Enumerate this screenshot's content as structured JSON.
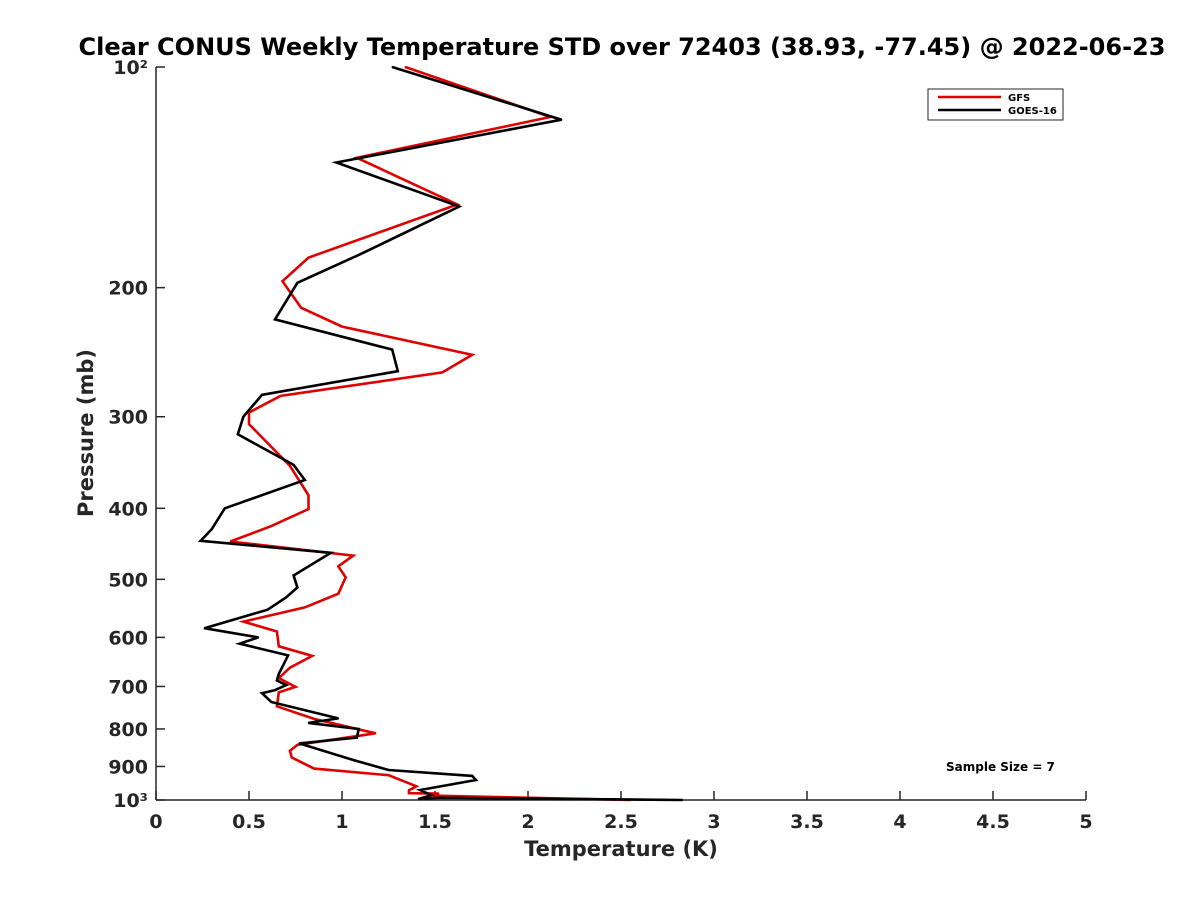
{
  "chart_data": {
    "type": "line",
    "title": "Clear CONUS Weekly Temperature STD over 72403 (38.93, -77.45) @ 2022-06-23",
    "xlabel": "Temperature (K)",
    "ylabel": "Pressure (mb)",
    "xlim": [
      0,
      5
    ],
    "ylim": [
      100,
      1000
    ],
    "y_scale": "log",
    "y_reversed": true,
    "x_ticks": [
      0,
      0.5,
      1,
      1.5,
      2,
      2.5,
      3,
      3.5,
      4,
      4.5,
      5
    ],
    "x_tick_labels": [
      "0",
      "0.5",
      "1",
      "1.5",
      "2",
      "2.5",
      "3",
      "3.5",
      "4",
      "4.5",
      "5"
    ],
    "y_ticks": [
      100,
      200,
      300,
      400,
      500,
      600,
      700,
      800,
      900,
      1000
    ],
    "y_tick_labels": [
      "10²",
      "200",
      "300",
      "400",
      "500",
      "600",
      "700",
      "800",
      "900",
      "10³"
    ],
    "grid": false,
    "legend": {
      "placement": "top-right",
      "entries": [
        "GFS",
        "GOES-16"
      ]
    },
    "annotation": "Sample Size = 7",
    "series": [
      {
        "name": "GFS",
        "color": "#e00000",
        "points": [
          [
            1.34,
            100
          ],
          [
            2.12,
            117
          ],
          [
            1.08,
            133
          ],
          [
            1.62,
            154
          ],
          [
            0.82,
            182
          ],
          [
            0.68,
            196
          ],
          [
            0.78,
            213
          ],
          [
            1.0,
            226
          ],
          [
            1.7,
            247
          ],
          [
            1.54,
            261
          ],
          [
            0.67,
            281
          ],
          [
            0.5,
            296
          ],
          [
            0.5,
            307
          ],
          [
            0.72,
            350
          ],
          [
            0.82,
            384
          ],
          [
            0.82,
            401
          ],
          [
            0.62,
            423
          ],
          [
            0.4,
            444
          ],
          [
            1.06,
            464
          ],
          [
            0.98,
            480
          ],
          [
            1.02,
            497
          ],
          [
            0.98,
            523
          ],
          [
            0.8,
            546
          ],
          [
            0.47,
            571
          ],
          [
            0.65,
            589
          ],
          [
            0.66,
            617
          ],
          [
            0.84,
            636
          ],
          [
            0.72,
            660
          ],
          [
            0.66,
            682
          ],
          [
            0.75,
            701
          ],
          [
            0.66,
            713
          ],
          [
            0.65,
            745
          ],
          [
            0.85,
            775
          ],
          [
            1.18,
            811
          ],
          [
            0.76,
            841
          ],
          [
            0.72,
            857
          ],
          [
            0.73,
            875
          ],
          [
            0.85,
            906
          ],
          [
            1.25,
            925
          ],
          [
            1.4,
            958
          ],
          [
            1.36,
            970
          ],
          [
            1.36,
            979
          ],
          [
            1.52,
            980
          ],
          [
            1.47,
            986
          ],
          [
            2.55,
            1000
          ]
        ]
      },
      {
        "name": "GOES-16",
        "color": "#000000",
        "points": [
          [
            1.27,
            100
          ],
          [
            2.18,
            118
          ],
          [
            0.97,
            135
          ],
          [
            1.63,
            155
          ],
          [
            1.1,
            180
          ],
          [
            0.76,
            197
          ],
          [
            0.64,
            221
          ],
          [
            1.27,
            243
          ],
          [
            1.3,
            260
          ],
          [
            0.57,
            280
          ],
          [
            0.47,
            300
          ],
          [
            0.44,
            317
          ],
          [
            0.74,
            349
          ],
          [
            0.8,
            366
          ],
          [
            0.37,
            400
          ],
          [
            0.3,
            427
          ],
          [
            0.24,
            443
          ],
          [
            0.94,
            460
          ],
          [
            0.74,
            494
          ],
          [
            0.76,
            513
          ],
          [
            0.7,
            529
          ],
          [
            0.6,
            550
          ],
          [
            0.26,
            583
          ],
          [
            0.55,
            600
          ],
          [
            0.45,
            612
          ],
          [
            0.71,
            635
          ],
          [
            0.66,
            673
          ],
          [
            0.65,
            687
          ],
          [
            0.7,
            697
          ],
          [
            0.64,
            708
          ],
          [
            0.57,
            715
          ],
          [
            0.62,
            735
          ],
          [
            0.98,
            774
          ],
          [
            0.82,
            785
          ],
          [
            1.09,
            800
          ],
          [
            1.08,
            822
          ],
          [
            0.77,
            837
          ],
          [
            1.06,
            882
          ],
          [
            1.25,
            910
          ],
          [
            1.7,
            927
          ],
          [
            1.72,
            939
          ],
          [
            1.42,
            969
          ],
          [
            1.48,
            985
          ],
          [
            1.41,
            997
          ],
          [
            1.52,
            993
          ],
          [
            2.83,
            1000
          ]
        ]
      }
    ]
  }
}
